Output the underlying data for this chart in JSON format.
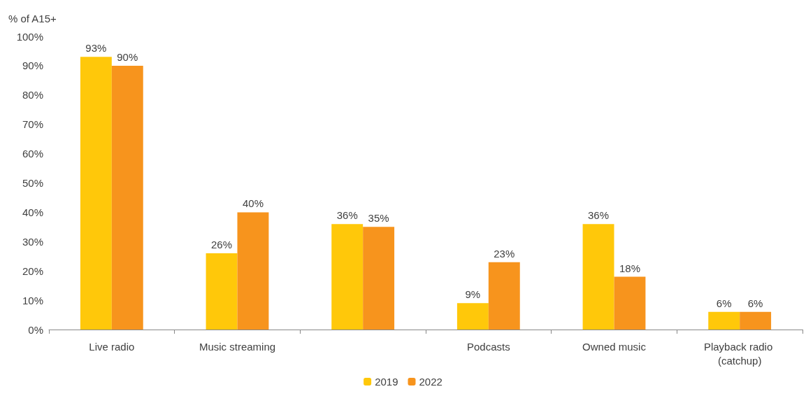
{
  "chart_data": {
    "type": "bar",
    "ylabel": "% of A15+",
    "categories": [
      "Live radio",
      "Music streaming",
      null,
      "Podcasts",
      "Owned music",
      "Playback radio (catchup)"
    ],
    "series": [
      {
        "name": "2019",
        "color": "#ffc80a",
        "values": [
          93,
          26,
          36,
          9,
          36,
          6
        ],
        "value_labels": [
          "93%",
          "26%",
          "36%",
          "9%",
          "36%",
          "6%"
        ]
      },
      {
        "name": "2022",
        "color": "#f7941d",
        "values": [
          90,
          40,
          35,
          23,
          18,
          6
        ],
        "value_labels": [
          "90%",
          "40%",
          "35%",
          "23%",
          "18%",
          "6%"
        ]
      }
    ],
    "ylim": [
      0,
      100
    ],
    "yticks": [
      {
        "value": 0,
        "label": "0%"
      },
      {
        "value": 10,
        "label": "10%"
      },
      {
        "value": 20,
        "label": "20%"
      },
      {
        "value": 30,
        "label": "30%"
      },
      {
        "value": 40,
        "label": "40%"
      },
      {
        "value": 50,
        "label": "50%"
      },
      {
        "value": 60,
        "label": "60%"
      },
      {
        "value": 70,
        "label": "70%"
      },
      {
        "value": 80,
        "label": "80%"
      },
      {
        "value": 90,
        "label": "90%"
      },
      {
        "value": 100,
        "label": "100%"
      }
    ],
    "grid": false,
    "legend": "bottom"
  }
}
